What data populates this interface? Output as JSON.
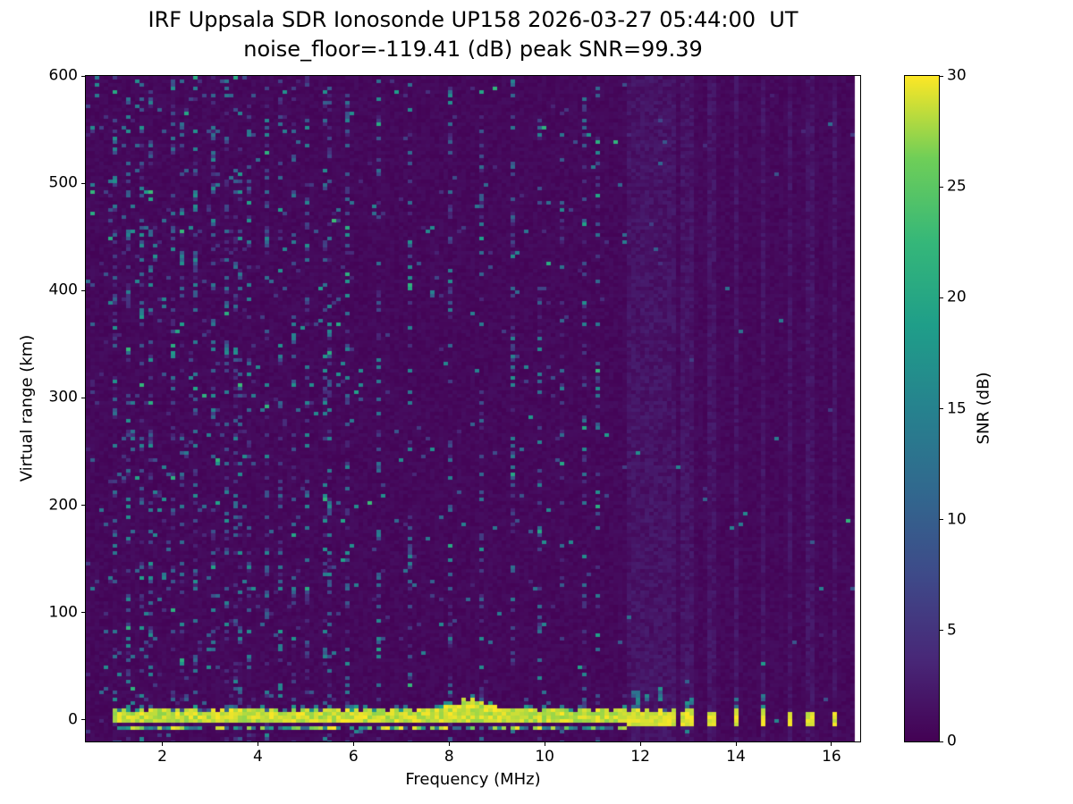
{
  "chart_data": {
    "type": "heatmap",
    "title": "IRF Uppsala SDR Ionosonde UP158 2026-03-27 05:44:00  UT",
    "subtitle": "noise_floor=-119.41 (dB) peak SNR=99.39",
    "xlabel": "Frequency (MHz)",
    "ylabel": "Virtual range (km)",
    "x_range": [
      0.4,
      16.6
    ],
    "y_range": [
      -20,
      600
    ],
    "x_ticks": [
      2,
      4,
      6,
      8,
      10,
      12,
      14,
      16
    ],
    "y_ticks": [
      0,
      100,
      200,
      300,
      400,
      500,
      600
    ],
    "colorbar": {
      "label": "SNR (dB)",
      "range": [
        0,
        30
      ],
      "ticks": [
        0,
        5,
        10,
        15,
        20,
        25,
        30
      ]
    },
    "colormap": {
      "name": "viridis",
      "stops": [
        [
          "#440154",
          0
        ],
        [
          "#482878",
          0.125
        ],
        [
          "#3e4a89",
          0.25
        ],
        [
          "#31688e",
          0.375
        ],
        [
          "#26828e",
          0.5
        ],
        [
          "#1f9e89",
          0.625
        ],
        [
          "#35b779",
          0.75
        ],
        [
          "#6ece58",
          0.875
        ],
        [
          "#fde725",
          1
        ]
      ]
    },
    "data_extent": {
      "f_end": 16.47
    },
    "ground_echo": {
      "f_start": 0.93,
      "f_end": 11.72,
      "center_km": 2.5,
      "thickness_km": 7,
      "bump_mhz": 8.45,
      "bump_extra_km": 9
    },
    "rfi_stripes": [
      {
        "f": 11.78,
        "top": 9
      },
      {
        "f": 11.9,
        "top": 12,
        "tall": 26
      },
      {
        "f": 12.02,
        "top": 8
      },
      {
        "f": 12.14,
        "top": 11,
        "tall": 24
      },
      {
        "f": 12.28,
        "top": 9
      },
      {
        "f": 12.42,
        "top": 12,
        "tall": 30
      },
      {
        "f": 12.56,
        "top": 8
      },
      {
        "f": 12.72,
        "top": 10
      },
      {
        "f": 12.88,
        "top": 7
      },
      {
        "f": 13.02,
        "top": 11,
        "tall": 22
      },
      {
        "f": 13.5,
        "top": 9
      },
      {
        "f": 14.02,
        "top": 10,
        "tall": 20
      },
      {
        "f": 14.55,
        "top": 11,
        "tall": 28
      },
      {
        "f": 15.1,
        "top": 8
      },
      {
        "f": 15.55,
        "top": 9
      },
      {
        "f": 16.1,
        "top": 9
      }
    ],
    "noise_streaks": [
      1.02,
      1.28,
      1.55,
      1.78,
      2.2,
      2.42,
      2.72,
      3.08,
      3.32,
      3.58,
      3.85,
      4.22,
      4.5,
      4.78,
      5.05,
      5.45,
      5.9,
      6.5,
      7.18,
      8.05,
      8.7,
      9.35,
      9.9,
      10.35,
      10.8,
      11.15
    ],
    "noise_seed": 42
  }
}
